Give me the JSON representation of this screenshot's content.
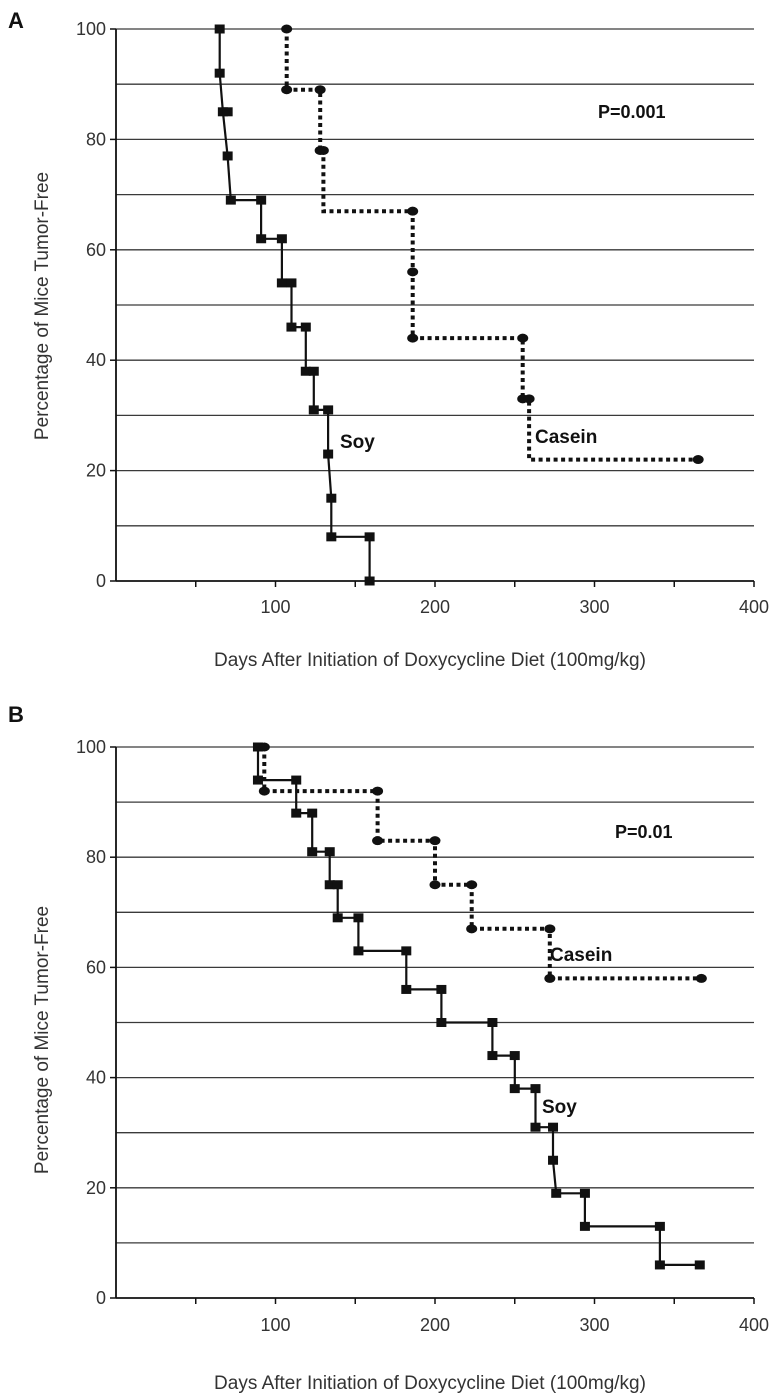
{
  "chart_data": [
    {
      "panel": "A",
      "type": "line",
      "xlabel": "Days After Initiation of Doxycycline Diet (100mg/kg)",
      "ylabel": "Percentage of Mice Tumor-Free",
      "xlim": [
        0,
        400
      ],
      "ylim": [
        0,
        100
      ],
      "x_ticks": [
        100,
        200,
        300,
        400
      ],
      "y_ticks": [
        0,
        20,
        40,
        60,
        80,
        100
      ],
      "grid": "horizontal",
      "grid_step": 10,
      "p_value": "P=0.001",
      "series": [
        {
          "name": "Soy",
          "style": "solid",
          "marker": "square",
          "steps": [
            [
              65,
              100
            ],
            [
              65,
              92
            ],
            [
              67,
              85
            ],
            [
              70,
              77
            ],
            [
              72,
              69
            ],
            [
              91,
              69
            ],
            [
              91,
              62
            ],
            [
              104,
              62
            ],
            [
              104,
              54
            ],
            [
              110,
              54
            ],
            [
              110,
              46
            ],
            [
              119,
              46
            ],
            [
              119,
              38
            ],
            [
              124,
              38
            ],
            [
              124,
              31
            ],
            [
              133,
              31
            ],
            [
              133,
              23
            ],
            [
              135,
              15
            ],
            [
              135,
              8
            ],
            [
              159,
              8
            ],
            [
              159,
              0
            ]
          ],
          "markers": [
            [
              65,
              100
            ],
            [
              65,
              92
            ],
            [
              67,
              85
            ],
            [
              70,
              85
            ],
            [
              70,
              77
            ],
            [
              72,
              69
            ],
            [
              91,
              69
            ],
            [
              91,
              62
            ],
            [
              104,
              62
            ],
            [
              104,
              54
            ],
            [
              110,
              54
            ],
            [
              110,
              46
            ],
            [
              119,
              46
            ],
            [
              119,
              38
            ],
            [
              124,
              38
            ],
            [
              124,
              31
            ],
            [
              133,
              31
            ],
            [
              133,
              23
            ],
            [
              135,
              15
            ],
            [
              135,
              8
            ],
            [
              159,
              8
            ],
            [
              159,
              0
            ]
          ]
        },
        {
          "name": "Casein",
          "style": "dotted",
          "marker": "circle",
          "steps": [
            [
              107,
              100
            ],
            [
              107,
              89
            ],
            [
              128,
              89
            ],
            [
              128,
              78
            ],
            [
              130,
              78
            ],
            [
              130,
              67
            ],
            [
              186,
              67
            ],
            [
              186,
              56
            ],
            [
              186,
              44
            ],
            [
              255,
              44
            ],
            [
              255,
              33
            ],
            [
              259,
              33
            ],
            [
              259,
              22
            ],
            [
              365,
              22
            ]
          ],
          "markers": [
            [
              107,
              100
            ],
            [
              107,
              89
            ],
            [
              128,
              89
            ],
            [
              128,
              78
            ],
            [
              130,
              78
            ],
            [
              186,
              67
            ],
            [
              186,
              56
            ],
            [
              186,
              44
            ],
            [
              255,
              44
            ],
            [
              255,
              33
            ],
            [
              259,
              33
            ],
            [
              365,
              22
            ]
          ]
        }
      ]
    },
    {
      "panel": "B",
      "type": "line",
      "xlabel": "Days After Initiation of Doxycycline Diet (100mg/kg)",
      "ylabel": "Percentage of Mice Tumor-Free",
      "xlim": [
        0,
        400
      ],
      "ylim": [
        0,
        100
      ],
      "x_ticks": [
        100,
        200,
        300,
        400
      ],
      "y_ticks": [
        0,
        20,
        40,
        60,
        80,
        100
      ],
      "grid": "horizontal",
      "grid_step": 10,
      "p_value": "P=0.01",
      "series": [
        {
          "name": "Soy",
          "style": "solid",
          "marker": "square",
          "steps": [
            [
              89,
              100
            ],
            [
              89,
              94
            ],
            [
              113,
              94
            ],
            [
              113,
              88
            ],
            [
              123,
              88
            ],
            [
              123,
              81
            ],
            [
              134,
              81
            ],
            [
              134,
              75
            ],
            [
              139,
              75
            ],
            [
              139,
              69
            ],
            [
              152,
              69
            ],
            [
              152,
              63
            ],
            [
              182,
              63
            ],
            [
              182,
              56
            ],
            [
              204,
              56
            ],
            [
              204,
              50
            ],
            [
              236,
              50
            ],
            [
              236,
              44
            ],
            [
              250,
              44
            ],
            [
              250,
              38
            ],
            [
              263,
              38
            ],
            [
              263,
              31
            ],
            [
              274,
              31
            ],
            [
              274,
              25
            ],
            [
              276,
              19
            ],
            [
              294,
              19
            ],
            [
              294,
              13
            ],
            [
              341,
              13
            ],
            [
              341,
              6
            ],
            [
              366,
              6
            ]
          ],
          "markers": [
            [
              89,
              100
            ],
            [
              89,
              94
            ],
            [
              113,
              94
            ],
            [
              113,
              88
            ],
            [
              123,
              88
            ],
            [
              123,
              81
            ],
            [
              134,
              81
            ],
            [
              134,
              75
            ],
            [
              139,
              75
            ],
            [
              139,
              69
            ],
            [
              152,
              69
            ],
            [
              152,
              63
            ],
            [
              182,
              63
            ],
            [
              182,
              56
            ],
            [
              204,
              56
            ],
            [
              204,
              50
            ],
            [
              236,
              50
            ],
            [
              236,
              44
            ],
            [
              250,
              44
            ],
            [
              250,
              38
            ],
            [
              263,
              38
            ],
            [
              263,
              31
            ],
            [
              274,
              31
            ],
            [
              274,
              25
            ],
            [
              276,
              19
            ],
            [
              294,
              19
            ],
            [
              294,
              13
            ],
            [
              341,
              13
            ],
            [
              341,
              6
            ],
            [
              366,
              6
            ]
          ]
        },
        {
          "name": "Casein",
          "style": "dotted",
          "marker": "circle",
          "steps": [
            [
              93,
              100
            ],
            [
              93,
              92
            ],
            [
              164,
              92
            ],
            [
              164,
              83
            ],
            [
              200,
              83
            ],
            [
              200,
              75
            ],
            [
              223,
              75
            ],
            [
              223,
              67
            ],
            [
              272,
              67
            ],
            [
              272,
              58
            ],
            [
              367,
              58
            ]
          ],
          "markers": [
            [
              93,
              100
            ],
            [
              93,
              92
            ],
            [
              164,
              92
            ],
            [
              164,
              83
            ],
            [
              200,
              83
            ],
            [
              200,
              75
            ],
            [
              223,
              75
            ],
            [
              223,
              67
            ],
            [
              272,
              67
            ],
            [
              272,
              58
            ],
            [
              367,
              58
            ]
          ]
        }
      ]
    }
  ]
}
